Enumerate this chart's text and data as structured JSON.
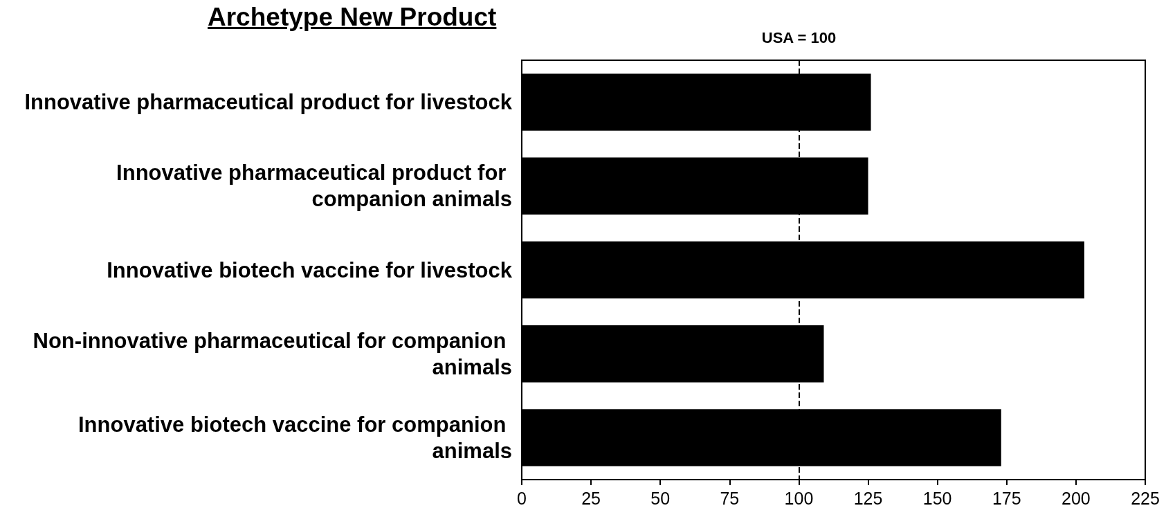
{
  "chart_data": {
    "type": "bar",
    "orientation": "horizontal",
    "title": "Archetype New Product",
    "categories": [
      "Innovative pharmaceutical product for livestock",
      "Innovative pharmaceutical product for companion animals",
      "Innovative biotech vaccine for livestock",
      "Non-innovative pharmaceutical for companion animals",
      "Innovative biotech vaccine for companion animals"
    ],
    "values": [
      126,
      125,
      203,
      109,
      173
    ],
    "color": "#000000",
    "xlim": [
      0,
      225
    ],
    "xticks": [
      0,
      25,
      50,
      75,
      100,
      125,
      150,
      175,
      200,
      225
    ],
    "grid": false,
    "ref_lines": [
      {
        "axis": "x",
        "value": 100,
        "label": "USA = 100",
        "color": "#000000",
        "line_style": "dashed"
      }
    ]
  }
}
